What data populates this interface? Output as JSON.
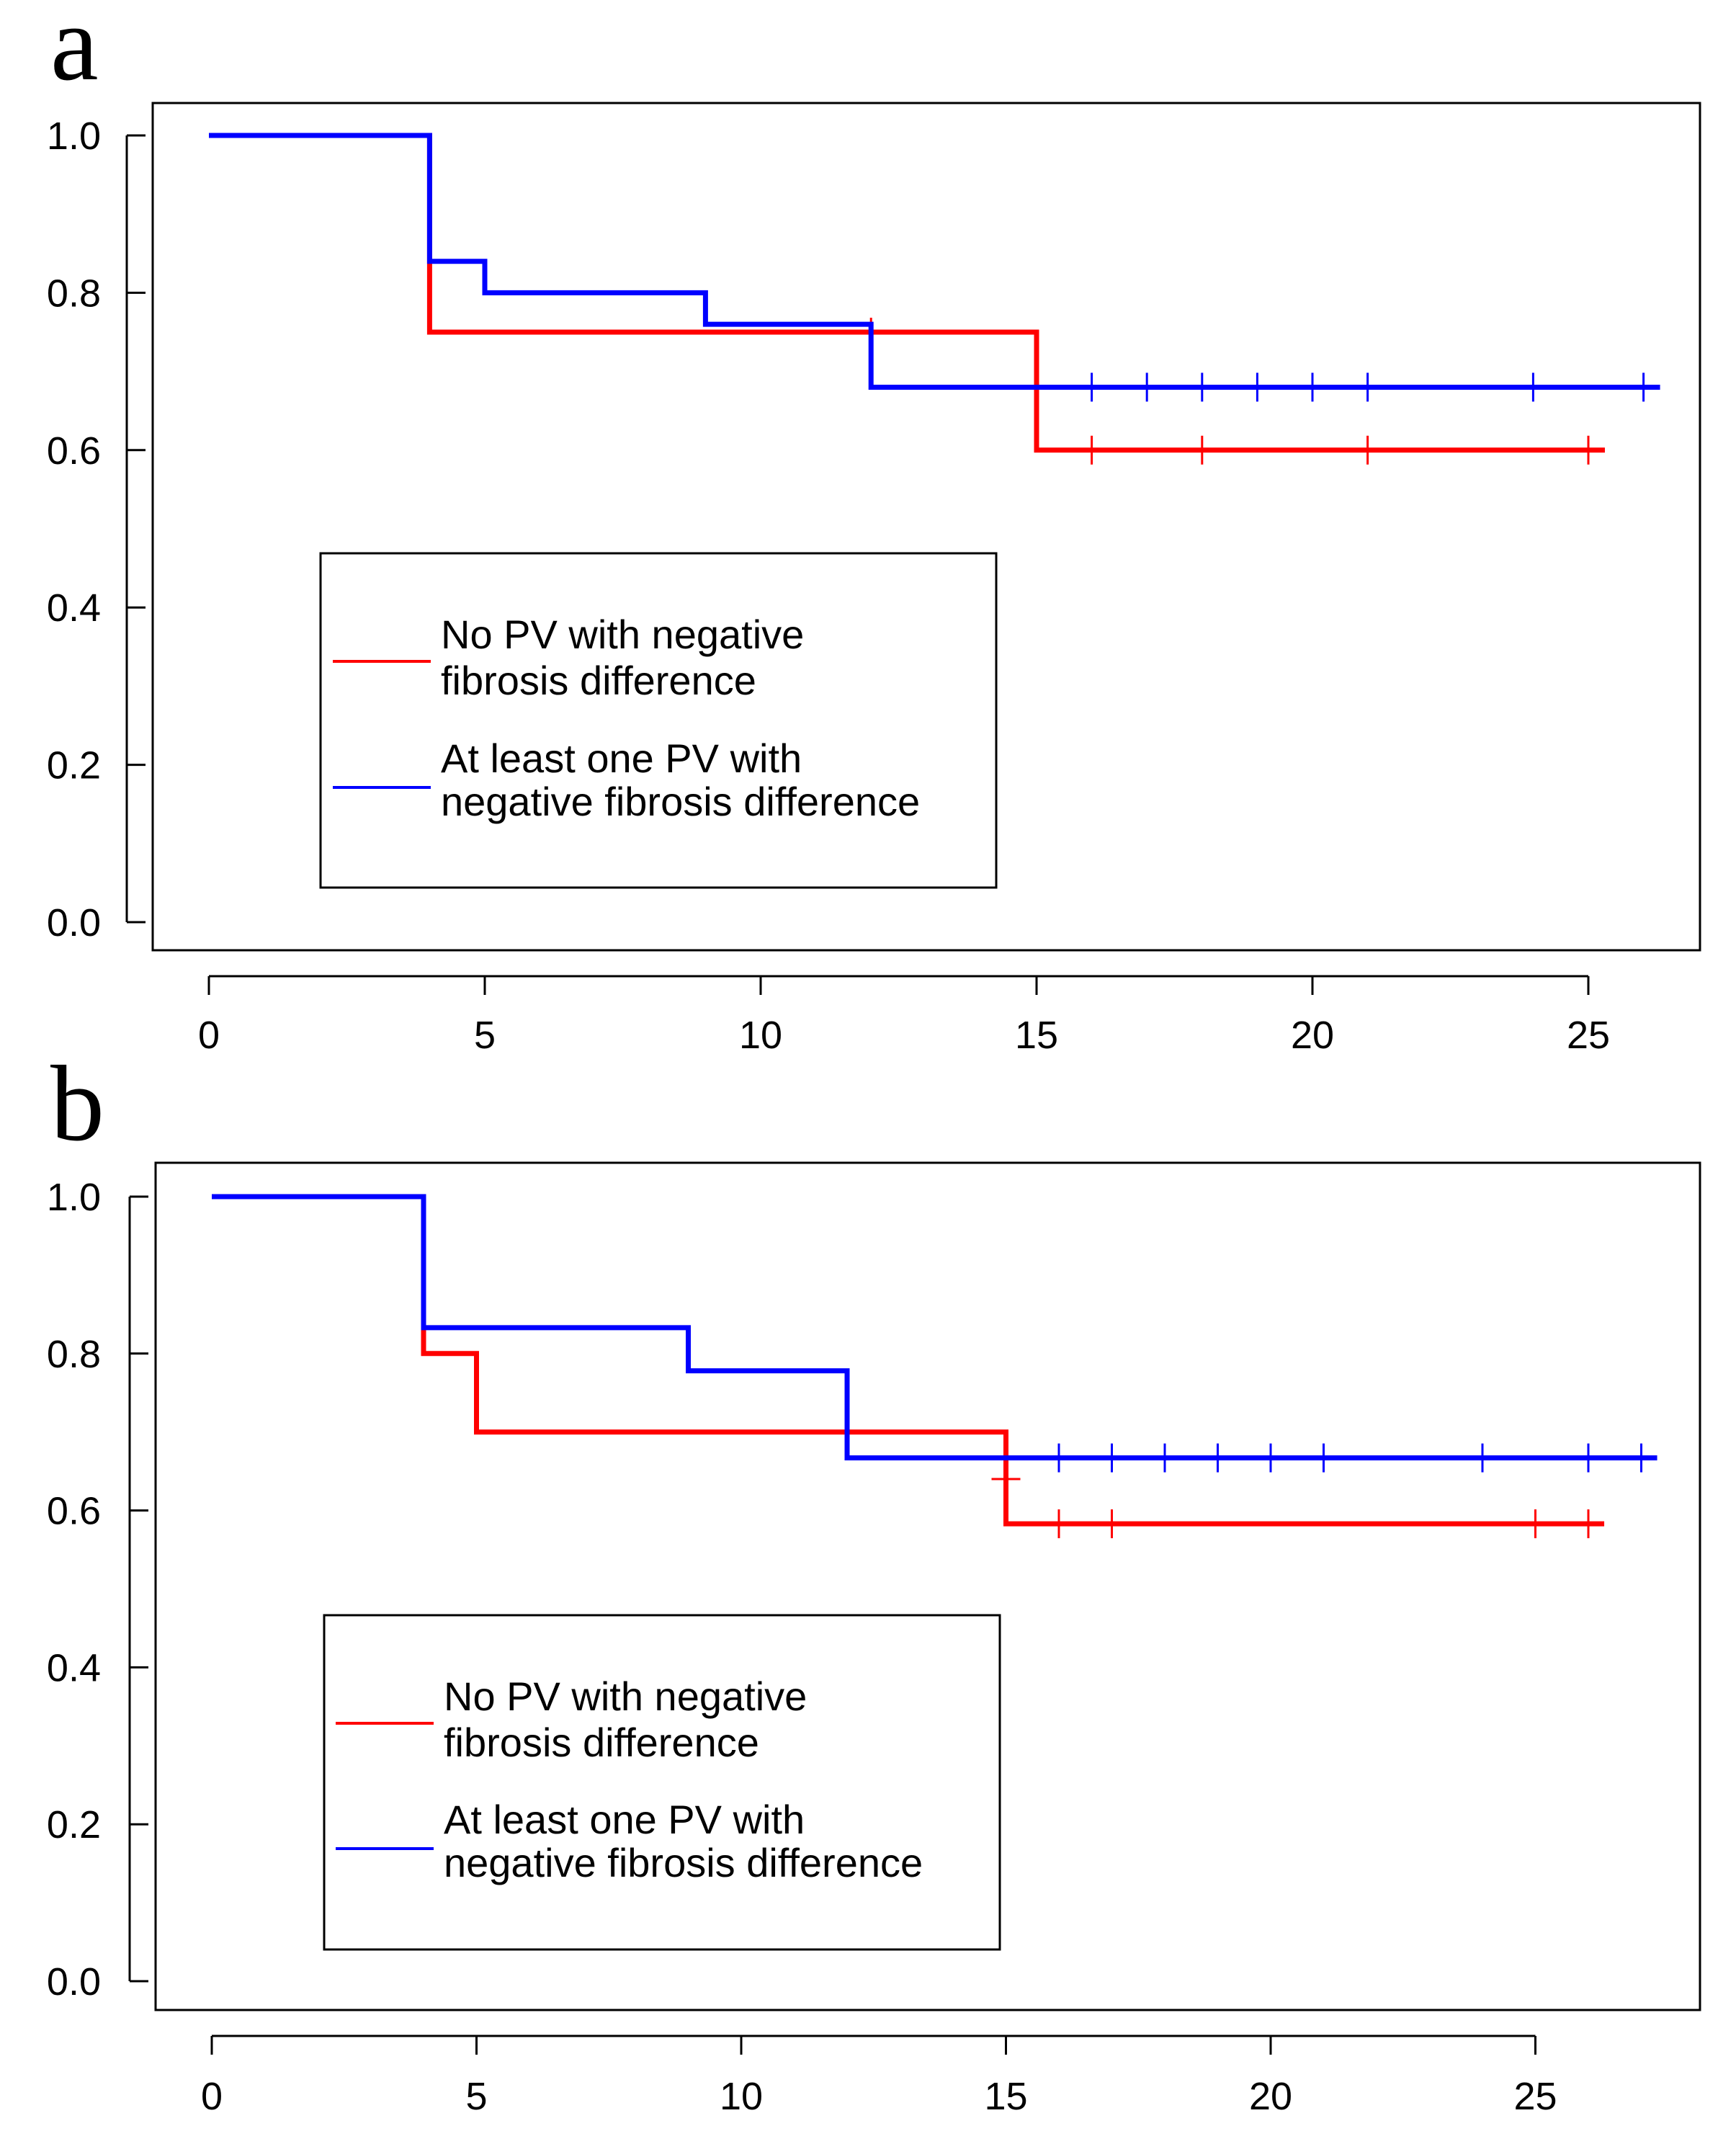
{
  "chart_data": [
    {
      "type": "line",
      "subtype": "kaplan-meier-step",
      "panel_label": "a",
      "title": "",
      "xlabel": "",
      "ylabel": "",
      "xlim": [
        0,
        26
      ],
      "ylim": [
        0,
        1.0
      ],
      "xticks": [
        "0",
        "5",
        "10",
        "15",
        "20",
        "25"
      ],
      "yticks": [
        "0.0",
        "0.2",
        "0.4",
        "0.6",
        "0.8",
        "1.0"
      ],
      "grid": false,
      "legend_position": "center-left",
      "series": [
        {
          "name": "No PV with negative fibrosis difference",
          "legend_lines": [
            "No PV with negative",
            "fibrosis difference"
          ],
          "color": "#ff0000",
          "x": [
            0,
            4,
            15,
            25.3
          ],
          "y": [
            1.0,
            0.75,
            0.6,
            0.6
          ],
          "censor_x": [
            12,
            16,
            18,
            21,
            25
          ],
          "censor_y": [
            0.75,
            0.6,
            0.6,
            0.6,
            0.6
          ]
        },
        {
          "name": "At least one PV with negative fibrosis difference",
          "legend_lines": [
            "At least one PV with",
            "negative fibrosis difference"
          ],
          "color": "#0000ff",
          "x": [
            0,
            4,
            5,
            9,
            12,
            26.3
          ],
          "y": [
            1.0,
            0.84,
            0.8,
            0.76,
            0.68,
            0.68
          ],
          "censor_x": [
            16,
            17,
            18,
            19,
            20,
            21,
            24,
            26
          ],
          "censor_y": [
            0.68,
            0.68,
            0.68,
            0.68,
            0.68,
            0.68,
            0.68,
            0.68
          ]
        }
      ]
    },
    {
      "type": "line",
      "subtype": "kaplan-meier-step",
      "panel_label": "b",
      "title": "",
      "xlabel": "",
      "ylabel": "",
      "xlim": [
        0,
        27
      ],
      "ylim": [
        0,
        1.0
      ],
      "xticks": [
        "0",
        "5",
        "10",
        "15",
        "20",
        "25"
      ],
      "yticks": [
        "0.0",
        "0.2",
        "0.4",
        "0.6",
        "0.8",
        "1.0"
      ],
      "grid": false,
      "legend_position": "center-left",
      "series": [
        {
          "name": "No PV with negative fibrosis difference",
          "legend_lines": [
            "No PV with negative",
            "fibrosis difference"
          ],
          "color": "#ff0000",
          "x": [
            0,
            4,
            5,
            15,
            26.3
          ],
          "y": [
            1.0,
            0.8,
            0.7,
            0.583,
            0.583
          ],
          "censor_x": [
            15,
            16,
            17,
            25,
            26
          ],
          "censor_y": [
            0.64,
            0.583,
            0.583,
            0.583,
            0.583
          ]
        },
        {
          "name": "At least one PV with negative fibrosis difference",
          "legend_lines": [
            "At least one PV with",
            "negative fibrosis difference"
          ],
          "color": "#0000ff",
          "x": [
            0,
            4,
            9,
            12,
            27.3
          ],
          "y": [
            1.0,
            0.833,
            0.778,
            0.667,
            0.667
          ],
          "censor_x": [
            16,
            17,
            18,
            19,
            20,
            21,
            24,
            26,
            27
          ],
          "censor_y": [
            0.667,
            0.667,
            0.667,
            0.667,
            0.667,
            0.667,
            0.667,
            0.667,
            0.667
          ]
        }
      ]
    }
  ]
}
